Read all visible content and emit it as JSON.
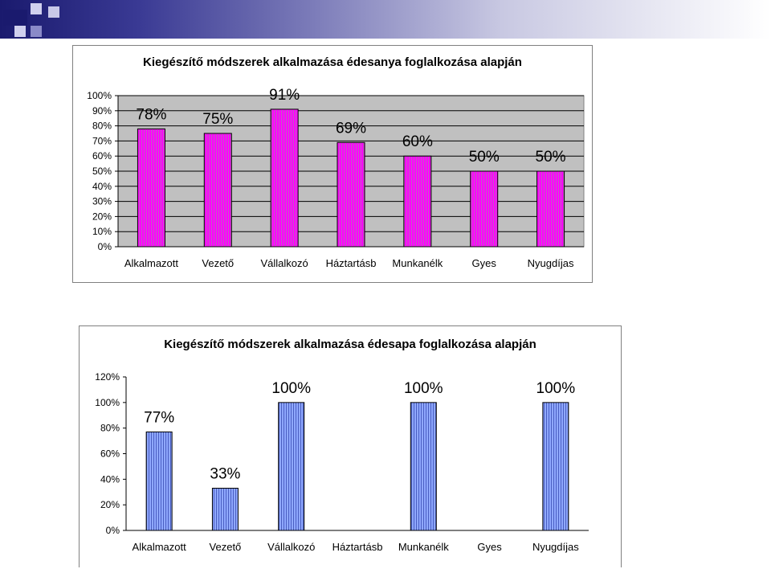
{
  "chart_data": [
    {
      "type": "bar",
      "title": "Kiegészítő módszerek alkalmazása édesanya foglalkozása alapján",
      "categories": [
        "Alkalmazott",
        "Vezető",
        "Vállalkozó",
        "Háztartásb",
        "Munkanélk",
        "Gyes",
        "Nyugdíjas"
      ],
      "values": [
        78,
        75,
        91,
        69,
        60,
        50,
        50
      ],
      "data_labels": [
        "78%",
        "75%",
        "91%",
        "69%",
        "60%",
        "50%",
        "50%"
      ],
      "yticks": [
        "0%",
        "10%",
        "20%",
        "30%",
        "40%",
        "50%",
        "60%",
        "70%",
        "80%",
        "90%",
        "100%"
      ],
      "ylim": [
        0,
        100
      ],
      "grid": true,
      "bar_color": "#ff00ff",
      "plot_bg": "#c0c0c0"
    },
    {
      "type": "bar",
      "title": "Kiegészítő módszerek alkalmazása édesapa foglalkozása alapján",
      "categories": [
        "Alkalmazott",
        "Vezető",
        "Vállalkozó",
        "Háztartásb",
        "Munkanélk",
        "Gyes",
        "Nyugdíjas"
      ],
      "values": [
        77,
        33,
        100,
        null,
        100,
        null,
        100
      ],
      "data_labels": [
        "77%",
        "33%",
        "100%",
        "",
        "100%",
        "",
        "100%"
      ],
      "yticks": [
        "0%",
        "20%",
        "40%",
        "60%",
        "80%",
        "100%",
        "120%"
      ],
      "ylim": [
        0,
        120
      ],
      "grid": false,
      "bar_color": "#8fa8ff",
      "plot_bg": "#ffffff"
    }
  ]
}
